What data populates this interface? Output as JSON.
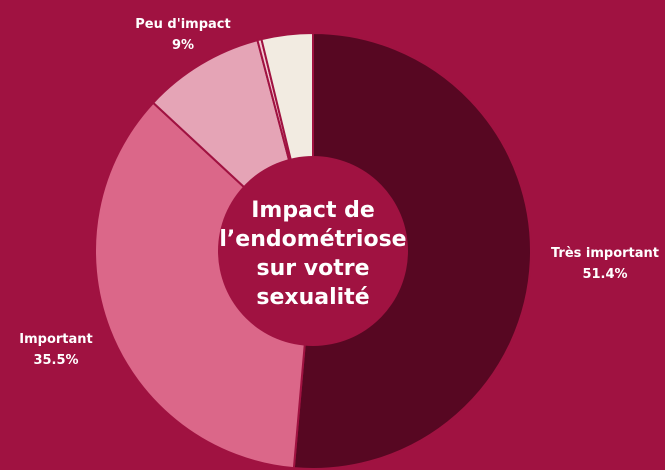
{
  "chart_data": {
    "type": "pie",
    "title": "Impact de l’endométriose sur votre sexualité",
    "title_lines": [
      "Impact de",
      "l’endométriose",
      "sur votre",
      "sexualité"
    ],
    "slices": [
      {
        "label": "Très important",
        "value": 51.4,
        "value_label": "51.4%",
        "color": "#570722"
      },
      {
        "label": "Important",
        "value": 35.5,
        "value_label": "35.5%",
        "color": "#db6789"
      },
      {
        "label": "Peu d'impact",
        "value": 9,
        "value_label": "9%",
        "color": "#e5a4b6"
      },
      {
        "label": "",
        "value": 0.3,
        "value_label": "",
        "color": "#f3c9d3"
      },
      {
        "label": "",
        "value": 3.8,
        "value_label": "",
        "color": "#f2ebe1"
      }
    ],
    "start_angle_deg": 0,
    "direction": "clockwise",
    "donut": true,
    "legend": "none"
  },
  "colors": {
    "background": "#a01241",
    "center": "#a01241",
    "separator": "#a01241"
  }
}
